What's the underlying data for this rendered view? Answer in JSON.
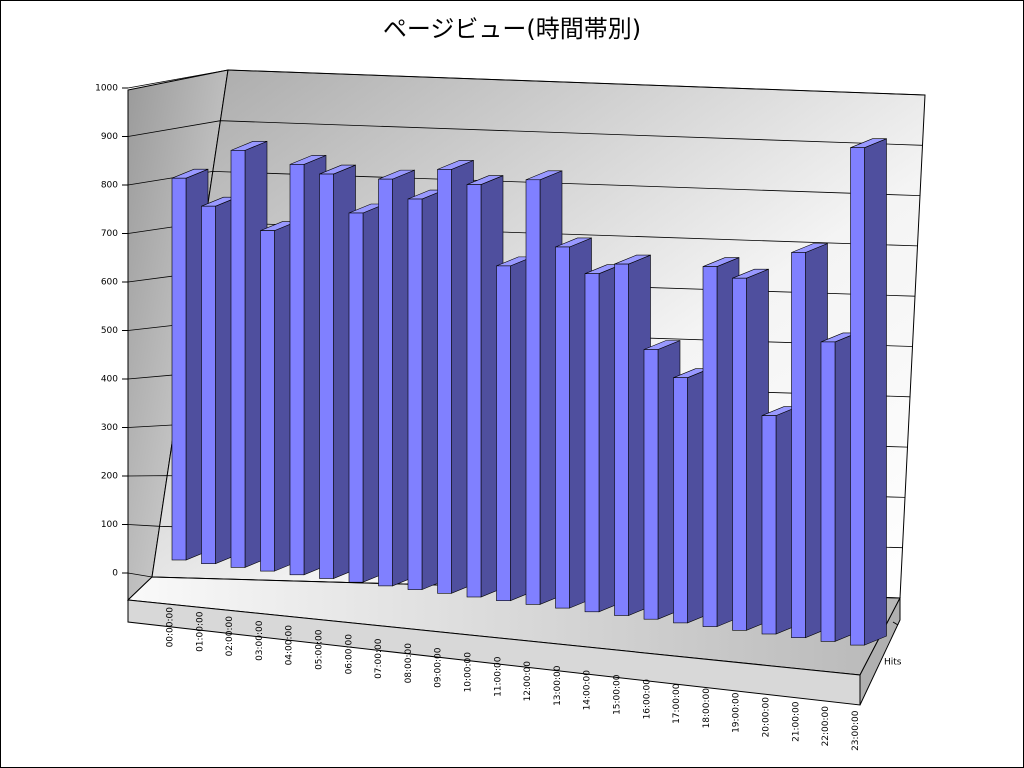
{
  "chart_data": {
    "type": "bar3d",
    "title": "ページビュー(時間帯別)",
    "categories": [
      "00:00:00",
      "01:00:00",
      "02:00:00",
      "03:00:00",
      "04:00:00",
      "05:00:00",
      "06:00:00",
      "07:00:00",
      "08:00:00",
      "09:00:00",
      "10:00:00",
      "11:00:00",
      "12:00:00",
      "13:00:00",
      "14:00:00",
      "15:00:00",
      "16:00:00",
      "17:00:00",
      "18:00:00",
      "19:00:00",
      "20:00:00",
      "21:00:00",
      "22:00:00",
      "23:00:00"
    ],
    "series": [
      {
        "name": "Hits",
        "color": "#8080ff",
        "values": [
          830,
          770,
          890,
          720,
          860,
          840,
          760,
          830,
          790,
          850,
          820,
          660,
          830,
          700,
          650,
          670,
          510,
          460,
          670,
          650,
          400,
          700,
          540,
          890
        ]
      }
    ],
    "ylim": [
      0,
      1000
    ],
    "yticks": [
      0,
      100,
      200,
      300,
      400,
      500,
      600,
      700,
      800,
      900,
      1000
    ],
    "grid": true
  }
}
